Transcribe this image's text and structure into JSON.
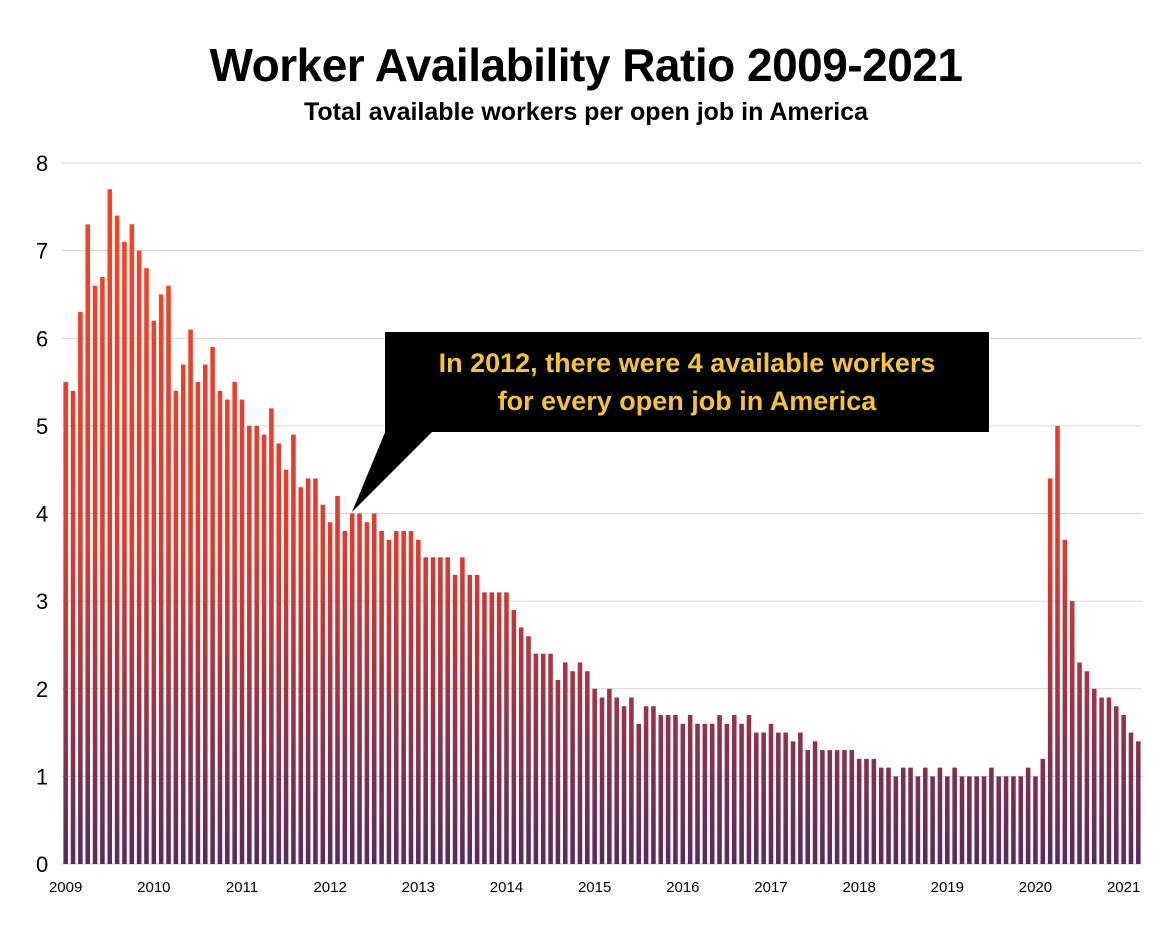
{
  "chart_data": {
    "type": "bar",
    "title": "Worker Availability Ratio 2009-2021",
    "subtitle": "Total available workers per open job in America",
    "ylim": [
      0,
      8
    ],
    "yticks": [
      "0",
      "1",
      "2",
      "3",
      "4",
      "5",
      "6",
      "7",
      "8"
    ],
    "xticks": [
      "2009",
      "2010",
      "2011",
      "2012",
      "2013",
      "2014",
      "2015",
      "2016",
      "2017",
      "2018",
      "2019",
      "2020",
      "2021"
    ],
    "grid": true,
    "colors": {
      "top": "#ff4422",
      "bottom": "#5a2a5e",
      "grid": "#d6d6d6",
      "callout_bg": "#000000",
      "callout_text": "#f4c431"
    },
    "annotation": {
      "lines": [
        "In 2012, there were 4 available workers",
        "for every open job in America"
      ]
    },
    "values": [
      5.5,
      5.4,
      6.3,
      7.3,
      6.6,
      6.7,
      7.7,
      7.4,
      7.1,
      7.3,
      7.0,
      6.8,
      6.2,
      6.5,
      6.6,
      5.4,
      5.7,
      6.1,
      5.5,
      5.7,
      5.9,
      5.4,
      5.3,
      5.5,
      5.3,
      5.0,
      5.0,
      4.9,
      5.2,
      4.8,
      4.5,
      4.9,
      4.3,
      4.4,
      4.4,
      4.1,
      3.9,
      4.2,
      3.8,
      4.0,
      4.0,
      3.9,
      4.0,
      3.8,
      3.7,
      3.8,
      3.8,
      3.8,
      3.7,
      3.5,
      3.5,
      3.5,
      3.5,
      3.3,
      3.5,
      3.3,
      3.3,
      3.1,
      3.1,
      3.1,
      3.1,
      2.9,
      2.7,
      2.6,
      2.4,
      2.4,
      2.4,
      2.1,
      2.3,
      2.2,
      2.3,
      2.2,
      2.0,
      1.9,
      2.0,
      1.9,
      1.8,
      1.9,
      1.6,
      1.8,
      1.8,
      1.7,
      1.7,
      1.7,
      1.6,
      1.7,
      1.6,
      1.6,
      1.6,
      1.7,
      1.6,
      1.7,
      1.6,
      1.7,
      1.5,
      1.5,
      1.6,
      1.5,
      1.5,
      1.4,
      1.5,
      1.3,
      1.4,
      1.3,
      1.3,
      1.3,
      1.3,
      1.3,
      1.2,
      1.2,
      1.2,
      1.1,
      1.1,
      1.0,
      1.1,
      1.1,
      1.0,
      1.1,
      1.0,
      1.1,
      1.0,
      1.1,
      1.0,
      1.0,
      1.0,
      1.0,
      1.1,
      1.0,
      1.0,
      1.0,
      1.0,
      1.1,
      1.0,
      1.2,
      4.4,
      5.0,
      3.7,
      3.0,
      2.3,
      2.2,
      2.0,
      1.9,
      1.9,
      1.8,
      1.7,
      1.5,
      1.4
    ]
  }
}
